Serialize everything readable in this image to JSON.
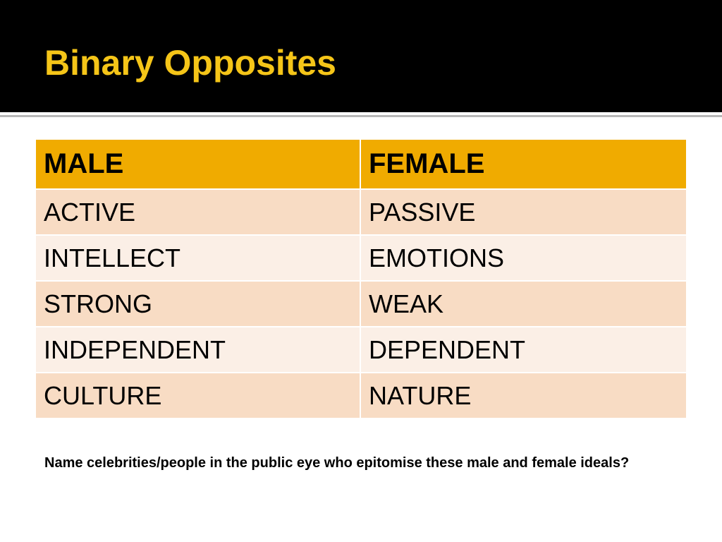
{
  "slide": {
    "title": "Binary Opposites",
    "question": "Name celebrities/people in the public eye who epitomise  these male and female ideals?"
  },
  "table": {
    "headers": [
      "MALE",
      "FEMALE"
    ],
    "rows": [
      [
        "ACTIVE",
        "PASSIVE"
      ],
      [
        "INTELLECT",
        "EMOTIONS"
      ],
      [
        "STRONG",
        "WEAK"
      ],
      [
        "INDEPENDENT",
        "DEPENDENT"
      ],
      [
        "CULTURE",
        "NATURE"
      ]
    ]
  },
  "colors": {
    "title_bar": "#000000",
    "title_text": "#f5c518",
    "header_fill": "#f0ab00",
    "row_odd_fill": "#f8dcc4",
    "row_even_fill": "#fbefe6"
  }
}
